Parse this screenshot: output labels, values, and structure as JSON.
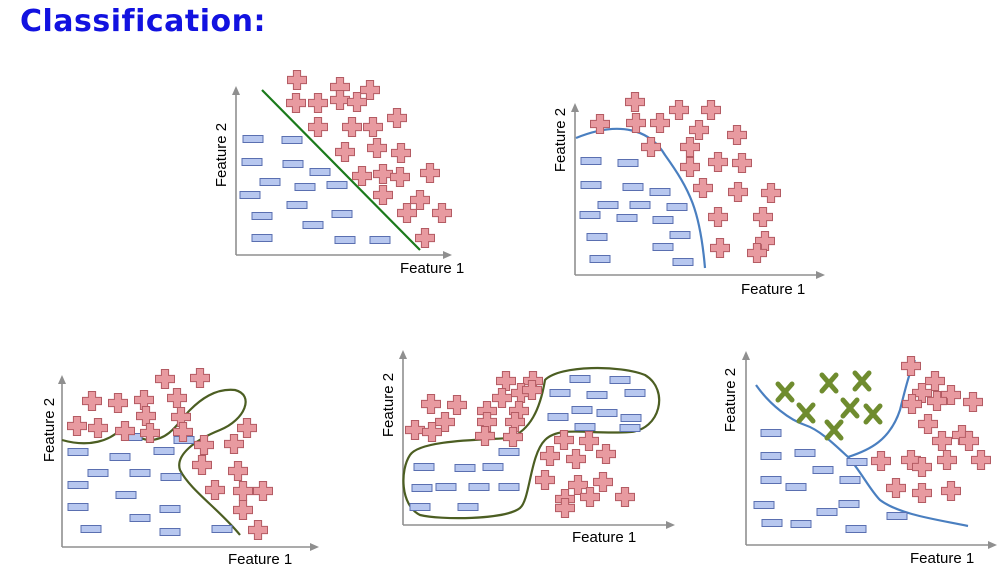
{
  "title": "Classification:",
  "colors": {
    "title": "#1212e0",
    "negative": "#b7c7ef",
    "positive": "#e89aa0",
    "third_class": "#6f8c2f",
    "linear": "#1b7a1b",
    "curve_blue": "#4a7fc0",
    "curve_dark": "#4c5e22"
  },
  "icons": {
    "negative": "minus-sign",
    "positive": "plus-sign",
    "third_class": "x-mark"
  },
  "panels": [
    {
      "id": "linear",
      "xlabel": "Feature 1",
      "ylabel": "Feature 2"
    },
    {
      "id": "curved",
      "xlabel": "Feature 1",
      "ylabel": "Feature 2"
    },
    {
      "id": "wiggly",
      "xlabel": "Feature 1",
      "ylabel": "Feature 2"
    },
    {
      "id": "regions",
      "xlabel": "Feature 1",
      "ylabel": "Feature 2"
    },
    {
      "id": "multiclass",
      "xlabel": "Feature 1",
      "ylabel": "Feature 2"
    }
  ]
}
